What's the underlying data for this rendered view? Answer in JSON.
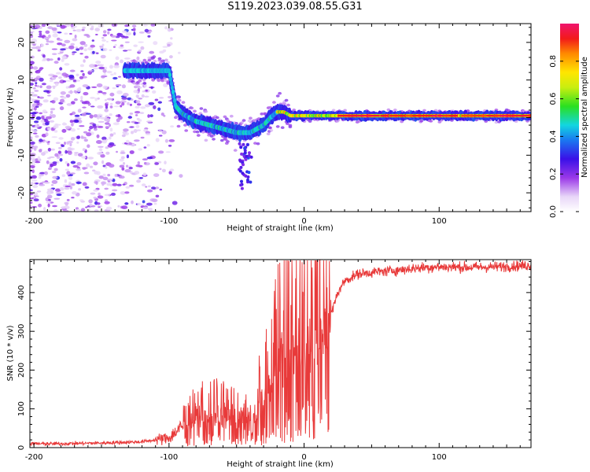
{
  "title": "S119.2023.039.08.55.G31",
  "chart_data": [
    {
      "type": "heatmap",
      "xlabel": "Height of straight line (km)",
      "ylabel": "Frequency (Hz)",
      "xlim": [
        -203,
        168
      ],
      "ylim": [
        -25,
        25
      ],
      "xticks": [
        -200,
        -100,
        0,
        100
      ],
      "yticks": [
        -20,
        -10,
        0,
        10,
        20
      ],
      "ridge": {
        "x": [
          -133,
          -120,
          -110,
          -100,
          -95,
          -90,
          -80,
          -70,
          -60,
          -50,
          -40,
          -35,
          -30,
          -25,
          -20,
          -15,
          -10,
          0,
          20,
          40,
          60,
          80,
          90,
          100,
          120,
          140,
          168
        ],
        "y": [
          12.5,
          12.5,
          12.5,
          12.5,
          3,
          1,
          -1,
          -2,
          -3,
          -4,
          -4,
          -3,
          -2,
          0,
          1.5,
          1.5,
          0.5,
          0.5,
          0.5,
          0.5,
          0.5,
          0.5,
          0.5,
          0.5,
          0.5,
          0.5,
          0.5
        ]
      },
      "colorbar": {
        "label": "Normalized spectral amplitude",
        "ticks": [
          0.0,
          0.2,
          0.4,
          0.6,
          0.8
        ],
        "range": [
          0,
          1
        ]
      }
    },
    {
      "type": "line",
      "xlabel": "Height of straight line (km)",
      "ylabel": "SNR (10 * v/v)",
      "xlim": [
        -203,
        168
      ],
      "ylim": [
        0,
        485
      ],
      "xticks": [
        -200,
        -100,
        0,
        100
      ],
      "yticks": [
        0,
        100,
        200,
        300,
        400
      ],
      "series": [
        {
          "name": "SNR",
          "color": "#e83a3a",
          "x": [
            -203,
            -180,
            -150,
            -120,
            -110,
            -100,
            -95,
            -90,
            -85,
            -80,
            -75,
            -70,
            -65,
            -60,
            -55,
            -50,
            -45,
            -40,
            -35,
            -30,
            -25,
            -20,
            -15,
            -10,
            -5,
            0,
            5,
            10,
            15,
            20,
            25,
            30,
            40,
            50,
            60,
            70,
            80,
            90,
            100,
            110,
            120,
            140,
            168
          ],
          "values": [
            10,
            10,
            12,
            15,
            20,
            25,
            40,
            55,
            60,
            70,
            75,
            80,
            80,
            75,
            70,
            70,
            75,
            85,
            95,
            130,
            175,
            210,
            235,
            250,
            265,
            275,
            280,
            290,
            300,
            345,
            400,
            430,
            448,
            452,
            455,
            458,
            462,
            465,
            466,
            466,
            465,
            466,
            470
          ]
        }
      ]
    }
  ]
}
